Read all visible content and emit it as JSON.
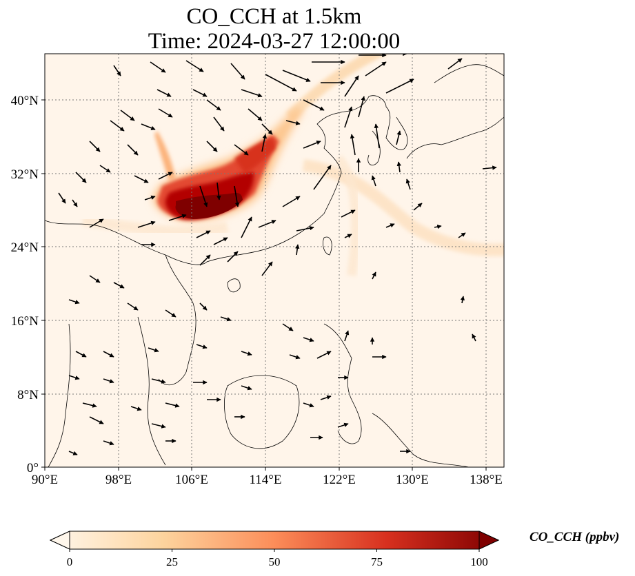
{
  "title": {
    "line1": "CO_CCH at 1.5km",
    "line2": "Time: 2024-03-27 12:00:00"
  },
  "map": {
    "lon_labels": [
      "90°E",
      "98°E",
      "106°E",
      "114°E",
      "122°E",
      "130°E",
      "138°E"
    ],
    "lat_labels": [
      "0°",
      "8°N",
      "16°N",
      "24°N",
      "32°N",
      "40°N"
    ],
    "lon_range": [
      90,
      140
    ],
    "lat_range": [
      0,
      45
    ],
    "gridlines": true
  },
  "colorbar": {
    "label": "CO_CCH (ppbv)",
    "ticks": [
      "0",
      "25",
      "50",
      "75",
      "100"
    ],
    "range": [
      0,
      100
    ],
    "colormap": "OrRd",
    "extend": "both",
    "colors": [
      "#fff7ec",
      "#fdd49e",
      "#fc8d59",
      "#d7301f",
      "#7f0000"
    ]
  }
}
